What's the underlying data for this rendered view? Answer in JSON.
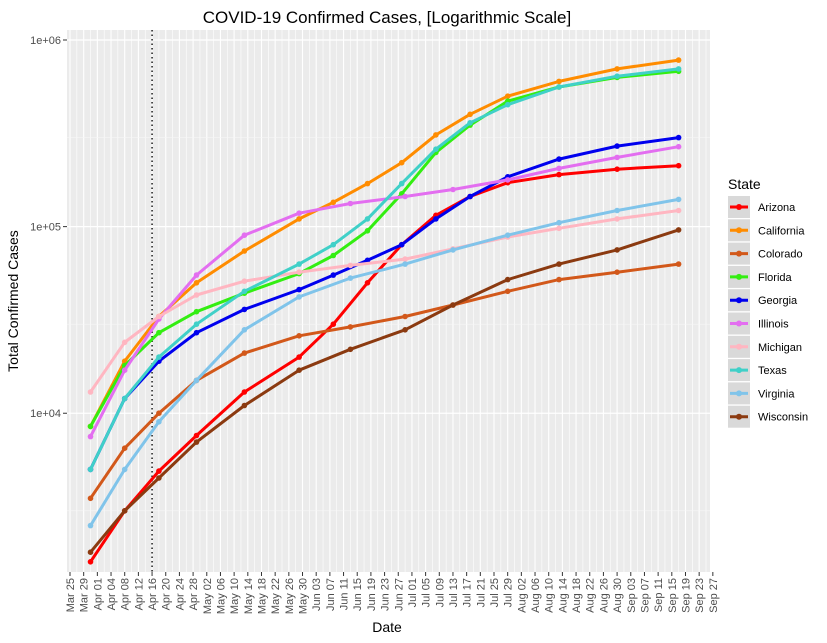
{
  "chart_data": {
    "type": "line",
    "title": "COVID-19 Confirmed Cases, [Logarithmic Scale]",
    "xlabel": "Date",
    "ylabel": "Total Confirmed Cases",
    "y_scale": "log10",
    "ylim": [
      1500,
      1000000
    ],
    "y_ticks": [
      {
        "value": 10000,
        "label": "1e+04"
      },
      {
        "value": 100000,
        "label": "1e+05"
      },
      {
        "value": 1000000,
        "label": "1e+06"
      }
    ],
    "x_range": [
      "2020-03-25",
      "2020-09-27"
    ],
    "x_tick_labels": [
      "Mar 25",
      "Mar 29",
      "Apr 01",
      "Apr 04",
      "Apr 08",
      "Apr 12",
      "Apr 16",
      "Apr 20",
      "Apr 24",
      "Apr 28",
      "May 02",
      "May 06",
      "May 10",
      "May 14",
      "May 18",
      "May 22",
      "May 26",
      "May 30",
      "Jun 03",
      "Jun 07",
      "Jun 11",
      "Jun 15",
      "Jun 19",
      "Jun 23",
      "Jun 27",
      "Jul 01",
      "Jul 05",
      "Jul 09",
      "Jul 13",
      "Jul 17",
      "Jul 21",
      "Jul 25",
      "Jul 29",
      "Aug 02",
      "Aug 06",
      "Aug 10",
      "Aug 14",
      "Aug 18",
      "Aug 22",
      "Aug 26",
      "Aug 30",
      "Sep 03",
      "Sep 07",
      "Sep 11",
      "Sep 15",
      "Sep 19",
      "Sep 23",
      "Sep 27"
    ],
    "vline": "2020-04-18",
    "grid": true,
    "legend_title": "State",
    "legend_position": "right",
    "series": [
      {
        "name": "Arizona",
        "color": "#FF0000",
        "points": [
          [
            "2020-03-31",
            1600
          ],
          [
            "2020-04-10",
            3000
          ],
          [
            "2020-04-20",
            4900
          ],
          [
            "2020-05-01",
            7600
          ],
          [
            "2020-05-15",
            13000
          ],
          [
            "2020-05-31",
            20000
          ],
          [
            "2020-06-10",
            30000
          ],
          [
            "2020-06-20",
            50000
          ],
          [
            "2020-06-30",
            80000
          ],
          [
            "2020-07-10",
            115000
          ],
          [
            "2020-07-20",
            145000
          ],
          [
            "2020-07-31",
            172000
          ],
          [
            "2020-08-15",
            190000
          ],
          [
            "2020-09-01",
            203000
          ],
          [
            "2020-09-19",
            212000
          ]
        ]
      },
      {
        "name": "California",
        "color": "#FF8C00",
        "points": [
          [
            "2020-03-31",
            8500
          ],
          [
            "2020-04-10",
            19000
          ],
          [
            "2020-04-20",
            33000
          ],
          [
            "2020-05-01",
            50000
          ],
          [
            "2020-05-15",
            74000
          ],
          [
            "2020-05-31",
            110000
          ],
          [
            "2020-06-10",
            135000
          ],
          [
            "2020-06-20",
            170000
          ],
          [
            "2020-06-30",
            220000
          ],
          [
            "2020-07-10",
            310000
          ],
          [
            "2020-07-20",
            400000
          ],
          [
            "2020-07-31",
            500000
          ],
          [
            "2020-08-15",
            600000
          ],
          [
            "2020-09-01",
            700000
          ],
          [
            "2020-09-19",
            780000
          ]
        ]
      },
      {
        "name": "Colorado",
        "color": "#D2581A",
        "points": [
          [
            "2020-03-31",
            3500
          ],
          [
            "2020-04-10",
            6500
          ],
          [
            "2020-04-20",
            10000
          ],
          [
            "2020-05-01",
            15000
          ],
          [
            "2020-05-15",
            21000
          ],
          [
            "2020-05-31",
            26000
          ],
          [
            "2020-06-15",
            29000
          ],
          [
            "2020-07-01",
            33000
          ],
          [
            "2020-07-15",
            38000
          ],
          [
            "2020-07-31",
            45000
          ],
          [
            "2020-08-15",
            52000
          ],
          [
            "2020-09-01",
            57000
          ],
          [
            "2020-09-19",
            63000
          ]
        ]
      },
      {
        "name": "Florida",
        "color": "#33EE11",
        "points": [
          [
            "2020-03-31",
            8500
          ],
          [
            "2020-04-10",
            18000
          ],
          [
            "2020-04-20",
            27000
          ],
          [
            "2020-05-01",
            35000
          ],
          [
            "2020-05-15",
            44000
          ],
          [
            "2020-05-31",
            56000
          ],
          [
            "2020-06-10",
            70000
          ],
          [
            "2020-06-20",
            95000
          ],
          [
            "2020-06-30",
            150000
          ],
          [
            "2020-07-10",
            250000
          ],
          [
            "2020-07-20",
            350000
          ],
          [
            "2020-07-31",
            470000
          ],
          [
            "2020-08-15",
            560000
          ],
          [
            "2020-09-01",
            630000
          ],
          [
            "2020-09-19",
            680000
          ]
        ]
      },
      {
        "name": "Georgia",
        "color": "#0000EE",
        "points": [
          [
            "2020-03-31",
            5000
          ],
          [
            "2020-04-10",
            12000
          ],
          [
            "2020-04-20",
            19000
          ],
          [
            "2020-05-01",
            27000
          ],
          [
            "2020-05-15",
            36000
          ],
          [
            "2020-05-31",
            46000
          ],
          [
            "2020-06-10",
            55000
          ],
          [
            "2020-06-20",
            66000
          ],
          [
            "2020-06-30",
            80000
          ],
          [
            "2020-07-10",
            110000
          ],
          [
            "2020-07-20",
            145000
          ],
          [
            "2020-07-31",
            185000
          ],
          [
            "2020-08-15",
            230000
          ],
          [
            "2020-09-01",
            270000
          ],
          [
            "2020-09-19",
            300000
          ]
        ]
      },
      {
        "name": "Illinois",
        "color": "#E36EF0",
        "points": [
          [
            "2020-03-31",
            7500
          ],
          [
            "2020-04-10",
            17000
          ],
          [
            "2020-04-20",
            32000
          ],
          [
            "2020-05-01",
            55000
          ],
          [
            "2020-05-15",
            90000
          ],
          [
            "2020-05-31",
            118000
          ],
          [
            "2020-06-15",
            133000
          ],
          [
            "2020-07-01",
            145000
          ],
          [
            "2020-07-15",
            158000
          ],
          [
            "2020-07-31",
            178000
          ],
          [
            "2020-08-15",
            205000
          ],
          [
            "2020-09-01",
            235000
          ],
          [
            "2020-09-19",
            268000
          ]
        ]
      },
      {
        "name": "Michigan",
        "color": "#FFB6C1",
        "points": [
          [
            "2020-03-31",
            13000
          ],
          [
            "2020-04-10",
            24000
          ],
          [
            "2020-04-20",
            33000
          ],
          [
            "2020-05-01",
            43000
          ],
          [
            "2020-05-15",
            51000
          ],
          [
            "2020-05-31",
            57000
          ],
          [
            "2020-06-15",
            62000
          ],
          [
            "2020-07-01",
            67000
          ],
          [
            "2020-07-15",
            76000
          ],
          [
            "2020-07-31",
            88000
          ],
          [
            "2020-08-15",
            98000
          ],
          [
            "2020-09-01",
            110000
          ],
          [
            "2020-09-19",
            122000
          ]
        ]
      },
      {
        "name": "Texas",
        "color": "#40D0C8",
        "points": [
          [
            "2020-03-31",
            5000
          ],
          [
            "2020-04-10",
            12000
          ],
          [
            "2020-04-20",
            20000
          ],
          [
            "2020-05-01",
            30000
          ],
          [
            "2020-05-15",
            45000
          ],
          [
            "2020-05-31",
            63000
          ],
          [
            "2020-06-10",
            80000
          ],
          [
            "2020-06-20",
            110000
          ],
          [
            "2020-06-30",
            170000
          ],
          [
            "2020-07-10",
            260000
          ],
          [
            "2020-07-20",
            360000
          ],
          [
            "2020-07-31",
            450000
          ],
          [
            "2020-08-15",
            560000
          ],
          [
            "2020-09-01",
            640000
          ],
          [
            "2020-09-19",
            700000
          ]
        ]
      },
      {
        "name": "Virginia",
        "color": "#80C4EA",
        "points": [
          [
            "2020-03-31",
            2500
          ],
          [
            "2020-04-10",
            5000
          ],
          [
            "2020-04-20",
            9000
          ],
          [
            "2020-05-01",
            15000
          ],
          [
            "2020-05-15",
            28000
          ],
          [
            "2020-05-31",
            42000
          ],
          [
            "2020-06-15",
            53000
          ],
          [
            "2020-07-01",
            63000
          ],
          [
            "2020-07-15",
            75000
          ],
          [
            "2020-07-31",
            90000
          ],
          [
            "2020-08-15",
            105000
          ],
          [
            "2020-09-01",
            122000
          ],
          [
            "2020-09-19",
            140000
          ]
        ]
      },
      {
        "name": "Wisconsin",
        "color": "#8B3A10",
        "points": [
          [
            "2020-03-31",
            1800
          ],
          [
            "2020-04-10",
            3000
          ],
          [
            "2020-04-20",
            4500
          ],
          [
            "2020-05-01",
            7000
          ],
          [
            "2020-05-15",
            11000
          ],
          [
            "2020-05-31",
            17000
          ],
          [
            "2020-06-15",
            22000
          ],
          [
            "2020-07-01",
            28000
          ],
          [
            "2020-07-15",
            38000
          ],
          [
            "2020-07-31",
            52000
          ],
          [
            "2020-08-15",
            63000
          ],
          [
            "2020-09-01",
            75000
          ],
          [
            "2020-09-19",
            96000
          ]
        ]
      }
    ]
  }
}
